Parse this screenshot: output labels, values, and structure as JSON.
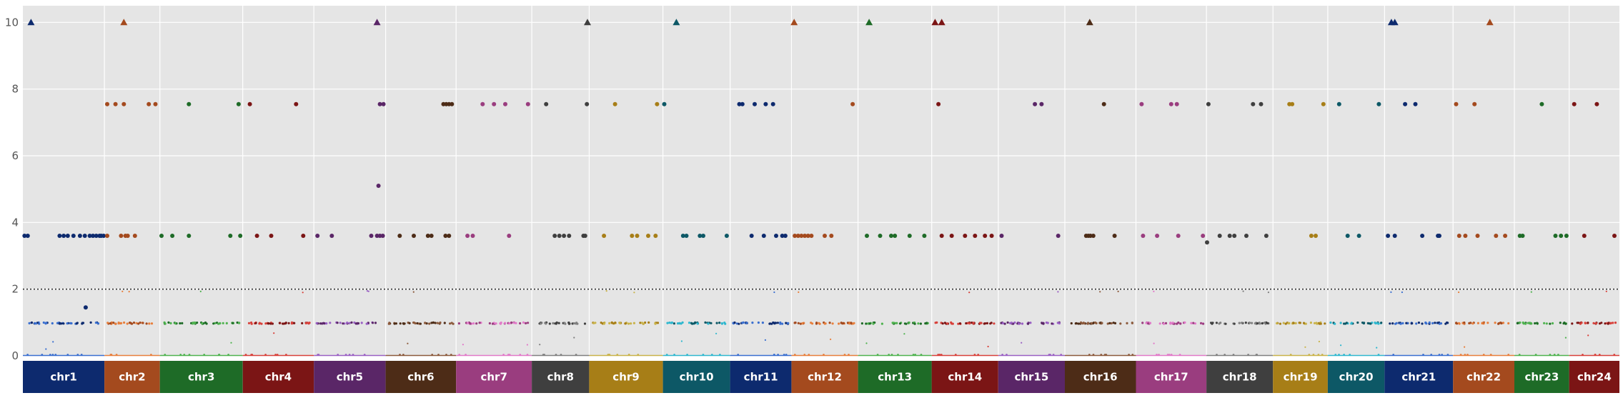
{
  "chart_data": {
    "type": "scatter",
    "title": "",
    "xlabel": "",
    "ylabel": "",
    "ylim": [
      0,
      10.5
    ],
    "yticks": [
      "0",
      "2",
      "4",
      "6",
      "8",
      "10"
    ],
    "threshold": 2,
    "grid": true,
    "background": "#e5e5e5",
    "chromosomes": [
      {
        "label": "chr1",
        "size": 12.5,
        "color": "#0d2a6e",
        "alt_color": "#3a6fd0"
      },
      {
        "label": "chr2",
        "size": 8.5,
        "color": "#a44a1e",
        "alt_color": "#e87f3c"
      },
      {
        "label": "chr3",
        "size": 12.7,
        "color": "#1e6b27",
        "alt_color": "#4fb34f"
      },
      {
        "label": "chr4",
        "size": 10.9,
        "color": "#7b1515",
        "alt_color": "#d8403a"
      },
      {
        "label": "chr5",
        "size": 11.0,
        "color": "#5a2667",
        "alt_color": "#9a60c4"
      },
      {
        "label": "chr6",
        "size": 10.8,
        "color": "#4d2c17",
        "alt_color": "#8c5a3c"
      },
      {
        "label": "chr7",
        "size": 11.6,
        "color": "#9a3d7f",
        "alt_color": "#e27ac9"
      },
      {
        "label": "chr8",
        "size": 8.8,
        "color": "#3f3f3f",
        "alt_color": "#808080"
      },
      {
        "label": "chr9",
        "size": 11.3,
        "color": "#a77e17",
        "alt_color": "#c9b34a"
      },
      {
        "label": "chr10",
        "size": 10.3,
        "color": "#0d5866",
        "alt_color": "#2fb8cf"
      },
      {
        "label": "chr11",
        "size": 9.4,
        "color": "#0d2a6e",
        "alt_color": "#3a6fd0"
      },
      {
        "label": "chr12",
        "size": 10.2,
        "color": "#a44a1e",
        "alt_color": "#e87f3c"
      },
      {
        "label": "chr13",
        "size": 11.3,
        "color": "#1e6b27",
        "alt_color": "#4fb34f"
      },
      {
        "label": "chr14",
        "size": 10.2,
        "color": "#7b1515",
        "alt_color": "#d8403a"
      },
      {
        "label": "chr15",
        "size": 10.2,
        "color": "#5a2667",
        "alt_color": "#9a60c4"
      },
      {
        "label": "chr16",
        "size": 10.9,
        "color": "#4d2c17",
        "alt_color": "#8c5a3c"
      },
      {
        "label": "chr17",
        "size": 10.8,
        "color": "#9a3d7f",
        "alt_color": "#e27ac9"
      },
      {
        "label": "chr18",
        "size": 10.2,
        "color": "#3f3f3f",
        "alt_color": "#808080"
      },
      {
        "label": "chr19",
        "size": 8.4,
        "color": "#a77e17",
        "alt_color": "#c9b34a"
      },
      {
        "label": "chr20",
        "size": 8.7,
        "color": "#0d5866",
        "alt_color": "#2fb8cf"
      },
      {
        "label": "chr21",
        "size": 10.5,
        "color": "#0d2a6e",
        "alt_color": "#3a6fd0"
      },
      {
        "label": "chr22",
        "size": 9.4,
        "color": "#a44a1e",
        "alt_color": "#e87f3c"
      },
      {
        "label": "chr23",
        "size": 8.4,
        "color": "#1e6b27",
        "alt_color": "#4fb34f"
      },
      {
        "label": "chr24",
        "size": 7.7,
        "color": "#7b1515",
        "alt_color": "#d8403a"
      }
    ],
    "series": [
      {
        "chrom": 0,
        "pos": [
          0.02,
          0.06,
          0.45,
          0.5,
          0.55,
          0.62,
          0.7,
          0.76,
          0.82,
          0.86,
          0.9,
          0.94,
          0.96,
          0.99
        ],
        "values": [
          3.6,
          3.6,
          3.6,
          3.6,
          3.6,
          3.6,
          3.6,
          3.6,
          3.6,
          3.6,
          3.6,
          3.6,
          3.6,
          3.6
        ]
      },
      {
        "chrom": 0,
        "pos": [
          0.77
        ],
        "values": [
          1.45
        ]
      },
      {
        "chrom": 1,
        "pos": [
          0.05,
          0.2,
          0.35,
          0.8,
          0.92
        ],
        "values": [
          7.55,
          7.55,
          7.55,
          7.55,
          7.55
        ]
      },
      {
        "chrom": 1,
        "pos": [
          0.05,
          0.3,
          0.38,
          0.42,
          0.55
        ],
        "values": [
          3.6,
          3.6,
          3.6,
          3.6,
          3.6
        ]
      },
      {
        "chrom": 2,
        "pos": [
          0.35,
          0.95
        ],
        "values": [
          7.55,
          7.55
        ]
      },
      {
        "chrom": 2,
        "pos": [
          0.02,
          0.15,
          0.35,
          0.85,
          0.97
        ],
        "values": [
          3.6,
          3.6,
          3.6,
          3.6,
          3.6
        ]
      },
      {
        "chrom": 3,
        "pos": [
          0.1,
          0.75
        ],
        "values": [
          7.55,
          7.55
        ]
      },
      {
        "chrom": 3,
        "pos": [
          0.2,
          0.4,
          0.85
        ],
        "values": [
          3.6,
          3.6,
          3.6
        ]
      },
      {
        "chrom": 4,
        "pos": [
          0.92,
          0.97
        ],
        "values": [
          7.55,
          7.55
        ]
      },
      {
        "chrom": 4,
        "pos": [
          0.9
        ],
        "values": [
          5.1
        ]
      },
      {
        "chrom": 4,
        "pos": [
          0.05,
          0.25,
          0.8,
          0.88,
          0.92,
          0.96
        ],
        "values": [
          3.6,
          3.6,
          3.6,
          3.6,
          3.6,
          3.6
        ]
      },
      {
        "chrom": 5,
        "pos": [
          0.82,
          0.86,
          0.9,
          0.94
        ],
        "values": [
          7.55,
          7.55,
          7.55,
          7.55
        ]
      },
      {
        "chrom": 5,
        "pos": [
          0.2,
          0.4,
          0.6,
          0.65,
          0.85,
          0.9
        ],
        "values": [
          3.6,
          3.6,
          3.6,
          3.6,
          3.6,
          3.6
        ]
      },
      {
        "chrom": 6,
        "pos": [
          0.35,
          0.5,
          0.65,
          0.95
        ],
        "values": [
          7.55,
          7.55,
          7.55,
          7.55
        ]
      },
      {
        "chrom": 6,
        "pos": [
          0.15,
          0.22,
          0.7
        ],
        "values": [
          3.6,
          3.6,
          3.6
        ]
      },
      {
        "chrom": 7,
        "pos": [
          0.25,
          0.4,
          0.48,
          0.56,
          0.65,
          0.9,
          0.93,
          0.96
        ],
        "values": [
          7.55,
          3.6,
          3.6,
          3.6,
          3.6,
          3.6,
          3.6,
          7.55
        ]
      },
      {
        "chrom": 8,
        "pos": [
          0.2,
          0.65,
          0.8,
          0.9,
          0.92
        ],
        "values": [
          3.6,
          3.6,
          3.6,
          3.6,
          7.55
        ]
      },
      {
        "chrom": 8,
        "pos": [
          0.35,
          0.58
        ],
        "values": [
          7.55,
          3.6
        ]
      },
      {
        "chrom": 9,
        "pos": [
          0.02,
          0.3,
          0.35,
          0.55,
          0.6,
          0.95
        ],
        "values": [
          7.55,
          3.6,
          3.6,
          3.6,
          3.6,
          3.6
        ]
      },
      {
        "chrom": 10,
        "pos": [
          0.15,
          0.2,
          0.4,
          0.58,
          0.7,
          0.85
        ],
        "values": [
          7.55,
          7.55,
          7.55,
          7.55,
          7.55,
          3.6
        ]
      },
      {
        "chrom": 10,
        "pos": [
          0.35,
          0.55,
          0.75,
          0.9
        ],
        "values": [
          3.6,
          3.6,
          3.6,
          3.6
        ]
      },
      {
        "chrom": 11,
        "pos": [
          0.05,
          0.1,
          0.15,
          0.2,
          0.25,
          0.3,
          0.5,
          0.6,
          0.92
        ],
        "values": [
          3.6,
          3.6,
          3.6,
          3.6,
          3.6,
          3.6,
          3.6,
          3.6,
          7.55
        ]
      },
      {
        "chrom": 12,
        "pos": [
          0.12,
          0.3,
          0.45,
          0.5,
          0.7,
          0.9
        ],
        "values": [
          3.6,
          3.6,
          3.6,
          3.6,
          3.6,
          3.6
        ]
      },
      {
        "chrom": 13,
        "pos": [
          0.1,
          0.15,
          0.3,
          0.5,
          0.65,
          0.8,
          0.9
        ],
        "values": [
          7.55,
          3.6,
          3.6,
          3.6,
          3.6,
          3.6,
          3.6
        ]
      },
      {
        "chrom": 14,
        "pos": [
          0.05,
          0.55,
          0.65,
          0.9
        ],
        "values": [
          3.6,
          7.55,
          7.55,
          3.6
        ]
      },
      {
        "chrom": 15,
        "pos": [
          0.3,
          0.33,
          0.36,
          0.4,
          0.55,
          0.7
        ],
        "values": [
          3.6,
          3.6,
          3.6,
          3.6,
          7.55,
          3.6
        ]
      },
      {
        "chrom": 16,
        "pos": [
          0.1,
          0.3,
          0.5,
          0.6,
          0.95
        ],
        "values": [
          3.6,
          3.6,
          7.55,
          3.6,
          3.6
        ]
      },
      {
        "chrom": 16,
        "pos": [
          0.08,
          0.58
        ],
        "values": [
          7.55,
          7.55
        ]
      },
      {
        "chrom": 17,
        "pos": [
          0.03,
          0.2,
          0.35,
          0.42,
          0.6,
          0.7,
          0.82,
          0.9
        ],
        "values": [
          7.55,
          3.6,
          3.6,
          3.6,
          3.6,
          7.55,
          7.55,
          3.6
        ]
      },
      {
        "chrom": 17,
        "pos": [
          0.01
        ],
        "values": [
          3.4
        ]
      },
      {
        "chrom": 18,
        "pos": [
          0.3,
          0.35,
          0.7,
          0.78
        ],
        "values": [
          7.55,
          7.55,
          3.6,
          3.6
        ]
      },
      {
        "chrom": 18,
        "pos": [
          0.92
        ],
        "values": [
          7.55
        ]
      },
      {
        "chrom": 19,
        "pos": [
          0.2,
          0.35,
          0.55,
          0.9
        ],
        "values": [
          7.55,
          3.6,
          3.6,
          7.55
        ]
      },
      {
        "chrom": 20,
        "pos": [
          0.05,
          0.15,
          0.3,
          0.45,
          0.55,
          0.78,
          0.8
        ],
        "values": [
          3.6,
          3.6,
          7.55,
          7.55,
          3.6,
          3.6,
          3.6
        ]
      },
      {
        "chrom": 21,
        "pos": [
          0.05,
          0.1,
          0.2,
          0.35,
          0.4,
          0.7,
          0.85
        ],
        "values": [
          7.55,
          3.6,
          3.6,
          7.55,
          3.6,
          3.6,
          3.6
        ]
      },
      {
        "chrom": 22,
        "pos": [
          0.1,
          0.15,
          0.5,
          0.75,
          0.85,
          0.95
        ],
        "values": [
          3.6,
          3.6,
          7.55,
          3.6,
          3.6,
          3.6
        ]
      },
      {
        "chrom": 23,
        "pos": [
          0.1,
          0.3,
          0.55,
          0.9
        ],
        "values": [
          7.55,
          3.6,
          7.55,
          3.6
        ]
      }
    ],
    "triangles": [
      {
        "chrom": 0,
        "pos": 0.1,
        "value": 10
      },
      {
        "chrom": 1,
        "pos": 0.35,
        "value": 10
      },
      {
        "chrom": 4,
        "pos": 0.88,
        "value": 10
      },
      {
        "chrom": 7,
        "pos": 0.97,
        "value": 10
      },
      {
        "chrom": 9,
        "pos": 0.2,
        "value": 10
      },
      {
        "chrom": 11,
        "pos": 0.04,
        "value": 10
      },
      {
        "chrom": 12,
        "pos": 0.15,
        "value": 10
      },
      {
        "chrom": 13,
        "pos": 0.05,
        "value": 10
      },
      {
        "chrom": 13,
        "pos": 0.15,
        "value": 10
      },
      {
        "chrom": 15,
        "pos": 0.35,
        "value": 10
      },
      {
        "chrom": 20,
        "pos": 0.1,
        "value": 10
      },
      {
        "chrom": 20,
        "pos": 0.15,
        "value": 10
      },
      {
        "chrom": 21,
        "pos": 0.6,
        "value": 10
      }
    ]
  }
}
